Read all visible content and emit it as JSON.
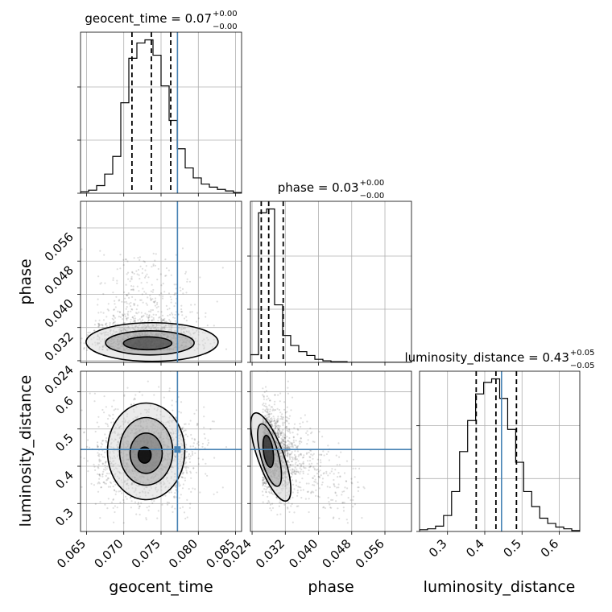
{
  "chart_data": {
    "type": "corner",
    "truth_color": "#4682b4",
    "parameters": [
      {
        "name": "geocent_time",
        "title_name": "geocent_time",
        "title_value": "0.07",
        "title_plus": "+0.00",
        "title_minus": "−0.00",
        "range": [
          0.0642,
          0.0858
        ],
        "ticks": [
          0.065,
          0.07,
          0.075,
          0.08,
          0.085
        ],
        "tick_labels": [
          "0.065",
          "0.070",
          "0.075",
          "0.080",
          "0.085"
        ],
        "truth": 0.0772,
        "quantiles": [
          0.0711,
          0.0737,
          0.0763
        ],
        "hist_edges_range": [
          0.0642,
          0.0858
        ],
        "hist_counts": [
          2,
          4,
          10,
          25,
          48,
          118,
          176,
          196,
          200,
          180,
          140,
          95,
          58,
          33,
          20,
          12,
          8,
          5,
          3,
          1
        ]
      },
      {
        "name": "phase",
        "title_name": "phase",
        "title_value": "0.03",
        "title_plus": "+0.00",
        "title_minus": "−0.00",
        "range": [
          0.0236,
          0.0624
        ],
        "ticks": [
          0.024,
          0.032,
          0.04,
          0.048,
          0.056
        ],
        "tick_labels": [
          "0.024",
          "0.032",
          "0.040",
          "0.048",
          "0.056"
        ],
        "truth": null,
        "quantiles": [
          0.0262,
          0.028,
          0.0315
        ],
        "hist_edges_range": [
          0.0236,
          0.0624
        ],
        "hist_counts": [
          10,
          195,
          200,
          75,
          35,
          22,
          14,
          9,
          4,
          2,
          1,
          1,
          0,
          0,
          0,
          0,
          0,
          0,
          0,
          0
        ]
      },
      {
        "name": "luminosity_distance",
        "title_name": "luminosity_distance",
        "title_value": "0.43",
        "title_plus": "+0.05",
        "title_minus": "−0.05",
        "range": [
          0.225,
          0.655
        ],
        "ticks": [
          0.3,
          0.4,
          0.5,
          0.6
        ],
        "tick_labels": [
          "0.3",
          "0.4",
          "0.5",
          "0.6"
        ],
        "truth": 0.445,
        "quantiles": [
          0.377,
          0.43,
          0.485
        ],
        "hist_edges_range": [
          0.225,
          0.655
        ],
        "hist_counts": [
          2,
          3,
          6,
          18,
          45,
          90,
          125,
          155,
          168,
          172,
          150,
          115,
          78,
          45,
          28,
          15,
          9,
          5,
          3,
          1
        ]
      }
    ],
    "yaxis_labels": {
      "phase_ticks": [
        "0.024",
        "0.032",
        "0.040",
        "0.048",
        "0.056"
      ],
      "distance_ticks": [
        "0.3",
        "0.4",
        "0.5",
        "0.6"
      ]
    },
    "grid": true
  }
}
